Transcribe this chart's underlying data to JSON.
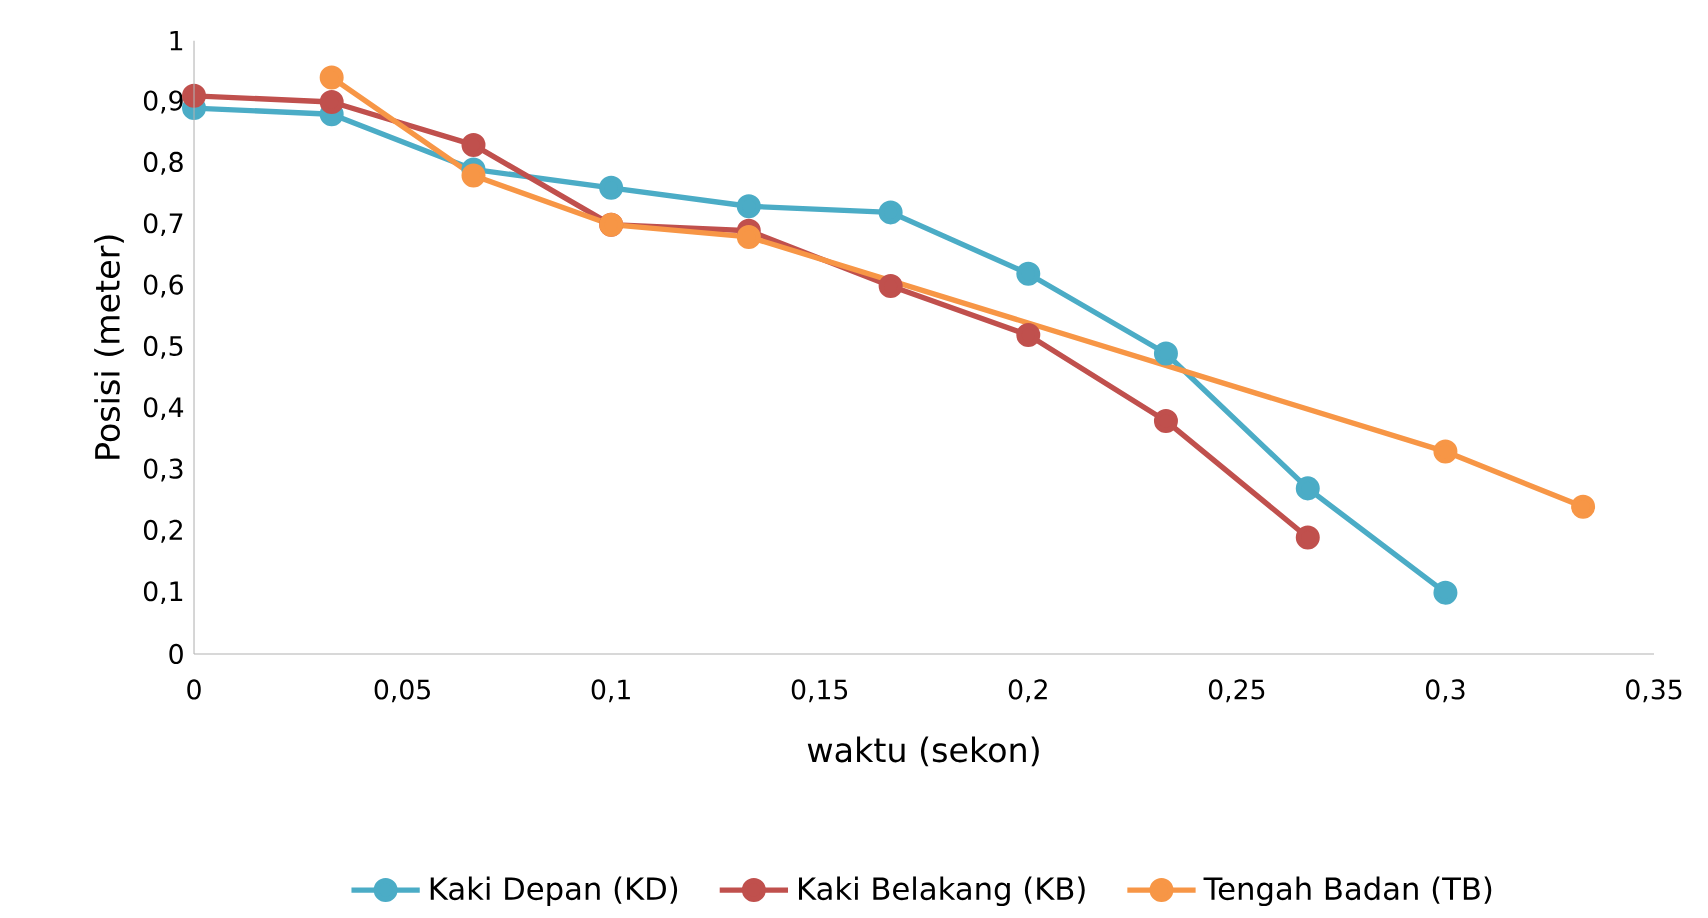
{
  "chart_data": {
    "type": "line",
    "xlabel": "waktu (sekon)",
    "ylabel": "Posisi (meter)",
    "xlim": [
      0,
      0.35
    ],
    "ylim": [
      0,
      1
    ],
    "xticks": [
      0,
      {
        "value": 0.05,
        "label": "0,05"
      },
      {
        "value": 0.1,
        "label": "0,1"
      },
      {
        "value": 0.15,
        "label": "0,15"
      },
      {
        "value": 0.2,
        "label": "0,2"
      },
      {
        "value": 0.25,
        "label": "0,25"
      },
      {
        "value": 0.3,
        "label": "0,3"
      },
      {
        "value": 0.35,
        "label": "0,35"
      }
    ],
    "yticks": [
      0,
      {
        "value": 0.1,
        "label": "0,1"
      },
      {
        "value": 0.2,
        "label": "0,2"
      },
      {
        "value": 0.3,
        "label": "0,3"
      },
      {
        "value": 0.4,
        "label": "0,4"
      },
      {
        "value": 0.5,
        "label": "0,5"
      },
      {
        "value": 0.6,
        "label": "0,6"
      },
      {
        "value": 0.7,
        "label": "0,7"
      },
      {
        "value": 0.8,
        "label": "0,8"
      },
      {
        "value": 0.9,
        "label": "0,9"
      },
      1
    ],
    "grid": false,
    "legend": "bottom",
    "marker": "circle",
    "line_style": "solid",
    "series": [
      {
        "name": "Kaki Depan (KD)",
        "color": "#4bacc6",
        "x": [
          0,
          0.033,
          0.067,
          0.1,
          0.133,
          0.167,
          0.2,
          0.233,
          0.267,
          0.3
        ],
        "values": [
          0.89,
          0.88,
          0.79,
          0.76,
          0.73,
          0.72,
          0.62,
          0.49,
          0.27,
          0.1
        ]
      },
      {
        "name": "Kaki Belakang (KB)",
        "color": "#c0504d",
        "x": [
          0,
          0.033,
          0.067,
          0.1,
          0.133,
          0.167,
          0.2,
          0.233,
          0.267
        ],
        "values": [
          0.91,
          0.9,
          0.83,
          0.7,
          0.69,
          0.6,
          0.52,
          0.38,
          0.19
        ]
      },
      {
        "name": "Tengah Badan (TB)",
        "color": "#f79646",
        "x": [
          0.033,
          0.067,
          0.1,
          0.133,
          0.3,
          0.333
        ],
        "values": [
          0.94,
          0.78,
          0.7,
          0.68,
          0.33,
          0.24
        ]
      }
    ]
  }
}
